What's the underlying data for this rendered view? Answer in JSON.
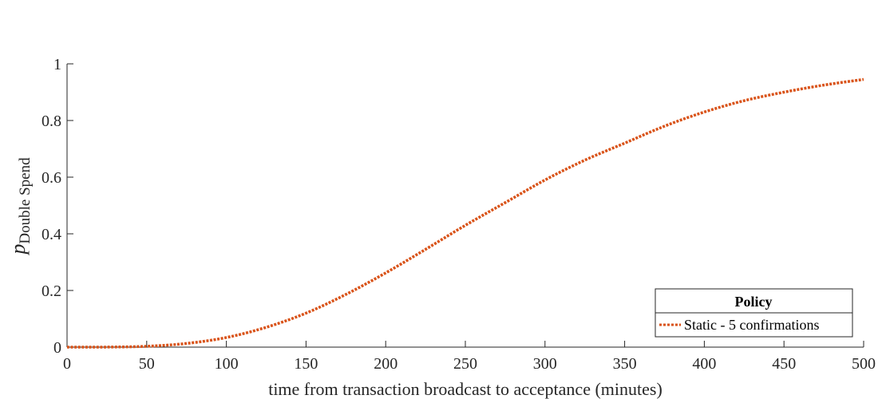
{
  "chart_data": {
    "type": "line",
    "xlabel": "time from transaction broadcast to acceptance (minutes)",
    "ylabel": {
      "main": "p",
      "subscript": "Double Spend"
    },
    "xlim": [
      0,
      500
    ],
    "ylim": [
      0,
      1
    ],
    "xticks": [
      0,
      50,
      100,
      150,
      200,
      250,
      300,
      350,
      400,
      450,
      500
    ],
    "yticks": [
      0,
      0.2,
      0.4,
      0.6,
      0.8,
      1
    ],
    "grid": false,
    "legend": {
      "title": "Policy",
      "placement": "bottom-right"
    },
    "series": [
      {
        "name": "Static - 5 confirmations",
        "color": "#d95319",
        "line_style": "dotted",
        "x": [
          0,
          25,
          50,
          75,
          100,
          125,
          150,
          175,
          200,
          225,
          250,
          275,
          300,
          325,
          350,
          375,
          400,
          425,
          450,
          475,
          500
        ],
        "y": [
          0,
          0.0002,
          0.003,
          0.013,
          0.034,
          0.07,
          0.12,
          0.186,
          0.262,
          0.345,
          0.43,
          0.51,
          0.59,
          0.66,
          0.72,
          0.78,
          0.83,
          0.87,
          0.9,
          0.925,
          0.945
        ]
      }
    ]
  }
}
